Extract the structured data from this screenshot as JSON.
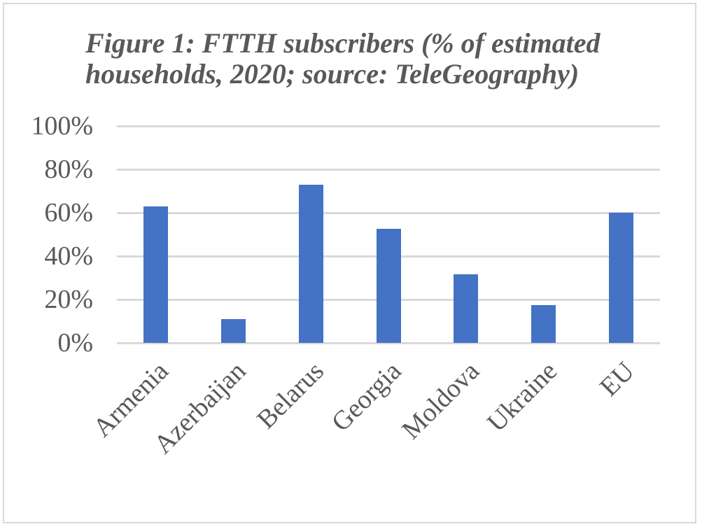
{
  "chart_data": {
    "type": "bar",
    "title": "Figure 1: FTTH subscribers (% of estimated households, 2020; source: TeleGeography)",
    "title_lines": [
      "Figure 1: FTTH subscribers (% of estimated",
      "households, 2020; source: TeleGeography)"
    ],
    "xlabel": "",
    "ylabel": "",
    "categories": [
      "Armenia",
      "Azerbaijan",
      "Belarus",
      "Georgia",
      "Moldova",
      "Ukraine",
      "EU"
    ],
    "values": [
      63,
      11,
      73,
      52.5,
      31.5,
      17.5,
      60
    ],
    "unit": "%",
    "ylim": [
      0,
      100
    ],
    "yticks": [
      0,
      20,
      40,
      60,
      80,
      100
    ],
    "ytick_labels": [
      "0%",
      "20%",
      "40%",
      "60%",
      "80%",
      "100%"
    ],
    "grid": true,
    "legend": null,
    "bar_color": "#4472c4",
    "x_label_rotation": -45
  }
}
